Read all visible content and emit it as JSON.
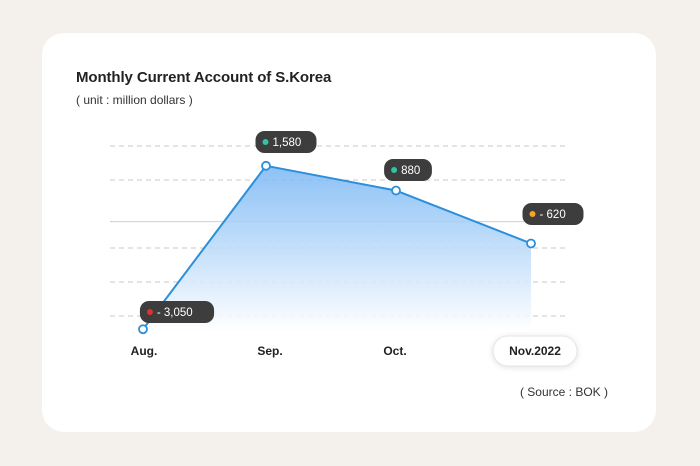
{
  "title": "Monthly Current Account of S.Korea",
  "subtitle": "( unit : million dollars )",
  "source": "( Source : BOK )",
  "colors": {
    "line": "#2b8fdc",
    "area_top": "#78b6f4",
    "badge": "#3d3d3d",
    "dot_positive": "#2ec4a6",
    "dot_negative": "#e03030",
    "dot_latest": "#f5a623"
  },
  "chart_data": {
    "type": "area",
    "categories": [
      "Aug.",
      "Sep.",
      "Oct.",
      "Nov.2022"
    ],
    "values": [
      -3050,
      1580,
      880,
      -620
    ],
    "data_labels": [
      "- 3,050",
      "1,580",
      "880",
      "- 620"
    ],
    "highlight_category": "Nov.2022",
    "ylim": [
      -3100,
      2000
    ],
    "zero_line": true,
    "grid": "dashed"
  }
}
